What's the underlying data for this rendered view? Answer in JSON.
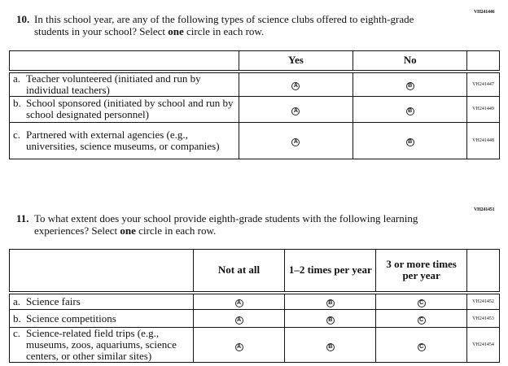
{
  "q10": {
    "code": "VH241446",
    "number": "10.",
    "text_before": "In this school year, are any of the following types of science clubs offered to eighth-grade students in your school? Select ",
    "text_bold": "one",
    "text_after": " circle in each row.",
    "columns": [
      "Yes",
      "No"
    ],
    "rows": [
      {
        "letter": "a.",
        "label": "Teacher volunteered (initiated and run by individual teachers)",
        "code": "VH241447"
      },
      {
        "letter": "b.",
        "label": "School sponsored (initiated by school and run by school designated personnel)",
        "code": "VH241449"
      },
      {
        "letter": "c.",
        "label": "Partnered with external agencies (e.g., universities, science museums, or companies)",
        "code": "VH241448"
      }
    ]
  },
  "q11": {
    "code": "VH241451",
    "number": "11.",
    "text_before": "To what extent does your school provide eighth-grade students with the following learning experiences? Select ",
    "text_bold": "one",
    "text_after": " circle in each row.",
    "columns": [
      "Not at all",
      "1–2 times per year",
      "3 or more times per year"
    ],
    "rows": [
      {
        "letter": "a.",
        "label": "Science fairs",
        "code": "VH241452"
      },
      {
        "letter": "b.",
        "label": "Science competitions",
        "code": "VH241453"
      },
      {
        "letter": "c.",
        "label": "Science-related field trips (e.g., museums, zoos, aquariums, science centers, or other similar sites)",
        "code": "VH241454"
      }
    ]
  },
  "bubble_letters": [
    "A",
    "B",
    "C"
  ]
}
